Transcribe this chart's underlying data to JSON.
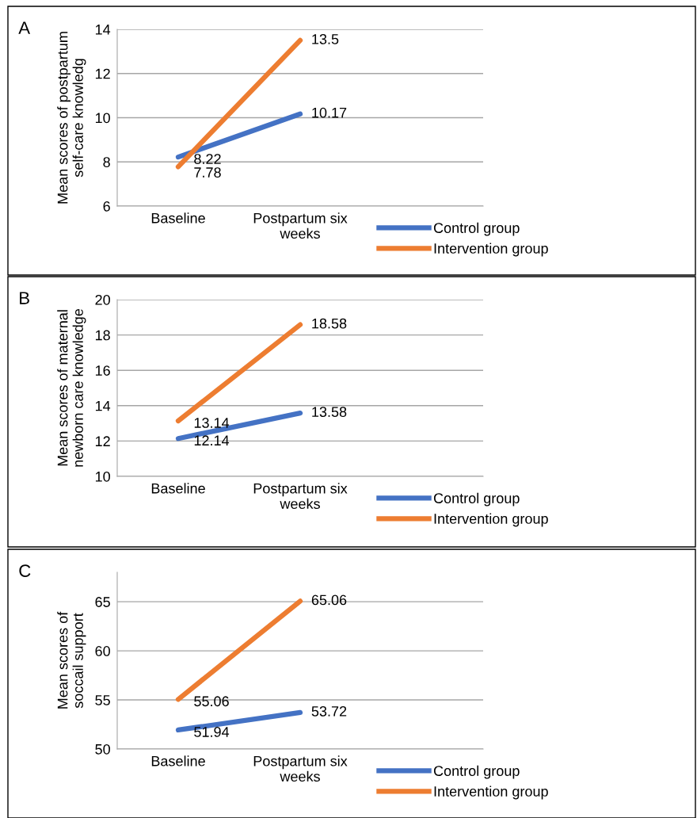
{
  "chart_data": [
    {
      "type": "line",
      "title": "A",
      "ylabel": "Mean scores of postpartum\nself-care knowledg",
      "categories": [
        "Baseline",
        "Postpartum six\nweeks"
      ],
      "ylim": [
        6,
        14
      ],
      "yticks": [
        6,
        8,
        10,
        12,
        14
      ],
      "grid": "y",
      "legend": "bottom right",
      "data_labels": true,
      "marker": "none",
      "line_style": "solid",
      "series": [
        {
          "name": "Control group",
          "color": "#4472c4",
          "values": [
            8.22,
            10.17
          ]
        },
        {
          "name": "Intervention group",
          "color": "#ed7d31",
          "values": [
            7.78,
            13.5
          ]
        }
      ]
    },
    {
      "type": "line",
      "title": "B",
      "ylabel": "Mean scores of maternal\nnewborn care knowledge",
      "categories": [
        "Baseline",
        "Postpartum six\nweeks"
      ],
      "ylim": [
        10,
        20
      ],
      "yticks": [
        10,
        12,
        14,
        16,
        18,
        20
      ],
      "grid": "y",
      "legend": "bottom right",
      "data_labels": true,
      "marker": "none",
      "line_style": "solid",
      "series": [
        {
          "name": "Control group",
          "color": "#4472c4",
          "values": [
            12.14,
            13.58
          ]
        },
        {
          "name": "Intervention group",
          "color": "#ed7d31",
          "values": [
            13.14,
            18.58
          ]
        }
      ]
    },
    {
      "type": "line",
      "title": "C",
      "ylabel": "Mean scores of\nsoccail support",
      "categories": [
        "Baseline",
        "Postpartum six\nweeks"
      ],
      "ylim": [
        50,
        68
      ],
      "yticks": [
        50,
        55,
        60,
        65
      ],
      "grid": "y",
      "legend": "bottom right",
      "data_labels": true,
      "marker": "none",
      "line_style": "solid",
      "series": [
        {
          "name": "Control group",
          "color": "#4472c4",
          "values": [
            51.94,
            53.72
          ]
        },
        {
          "name": "Intervention group",
          "color": "#ed7d31",
          "values": [
            55.06,
            65.06
          ]
        }
      ]
    }
  ]
}
